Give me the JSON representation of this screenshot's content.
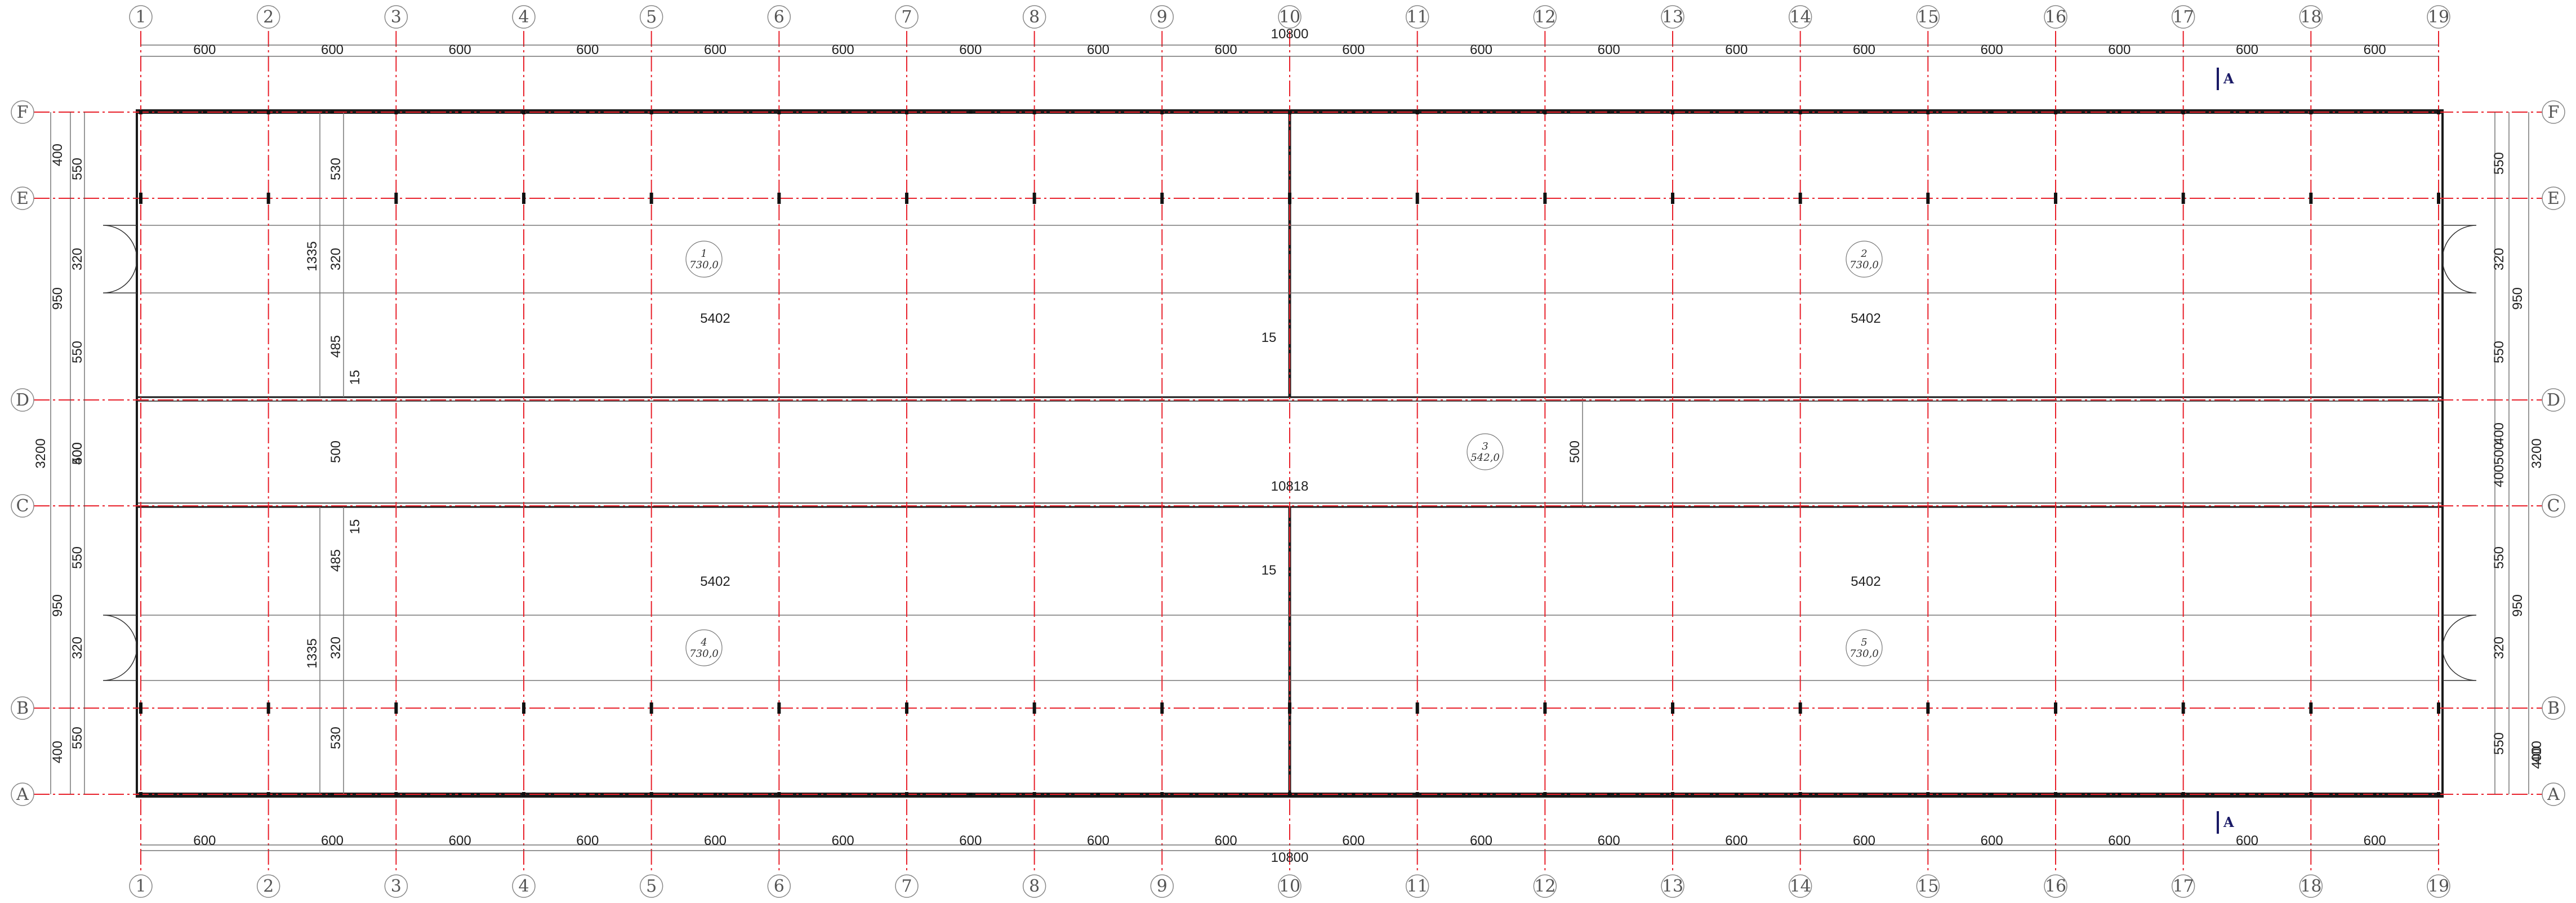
{
  "drawing": {
    "grid_columns": [
      "1",
      "2",
      "3",
      "4",
      "5",
      "6",
      "7",
      "8",
      "9",
      "10",
      "11",
      "12",
      "13",
      "14",
      "15",
      "16",
      "17",
      "18",
      "19"
    ],
    "grid_rows": [
      "F",
      "E",
      "D",
      "C",
      "B",
      "A"
    ],
    "top_total": "10800",
    "bottom_total": "10800",
    "bay_dims_top": [
      "600",
      "600",
      "600",
      "600",
      "600",
      "600",
      "600",
      "600",
      "600",
      "600",
      "600",
      "600",
      "600",
      "600",
      "600",
      "600",
      "600",
      "600"
    ],
    "bay_dims_bottom": [
      "600",
      "600",
      "600",
      "600",
      "600",
      "600",
      "600",
      "600",
      "600",
      "600",
      "600",
      "600",
      "600",
      "600",
      "600",
      "600",
      "600",
      "600"
    ],
    "left_outer_dims": [
      "400",
      "950",
      "3200",
      "950",
      "400"
    ],
    "left_inner_dims": [
      "550",
      "320",
      "550",
      "500",
      "550",
      "320",
      "550"
    ],
    "left_mid_dims": [
      "400"
    ],
    "right_outer_dims": [
      "400",
      "3200",
      "400"
    ],
    "right_inner_dims": [
      "550",
      "320",
      "550",
      "400",
      "500",
      "400",
      "550",
      "320",
      "550"
    ],
    "right_mid_dims": [
      "950",
      "950"
    ],
    "interior_dims": {
      "v1335_top": "1335",
      "v530_top": "530",
      "v320_top": "320",
      "v485_top": "485",
      "v15_top": "15",
      "v500_mid": "500",
      "v15_bottom": "15",
      "v485_bottom": "485",
      "v320_bottom": "320",
      "v1335_bottom": "1335",
      "v530_bottom": "530",
      "v500_right": "500",
      "h5402_tl": "5402",
      "h5402_tr": "5402",
      "h15_top": "15",
      "h10818": "10818",
      "h5402_bl": "5402",
      "h5402_br": "5402",
      "h15_bottom": "15"
    },
    "rooms": [
      {
        "num": "1",
        "area": "730,0"
      },
      {
        "num": "2",
        "area": "730,0"
      },
      {
        "num": "3",
        "area": "542,0"
      },
      {
        "num": "4",
        "area": "730,0"
      },
      {
        "num": "5",
        "area": "730,0"
      }
    ],
    "section_mark": "A",
    "colors": {
      "axis": "#e8202a",
      "wall": "#1a1a1a",
      "dim": "#555555",
      "section": "#1a1a66"
    }
  }
}
